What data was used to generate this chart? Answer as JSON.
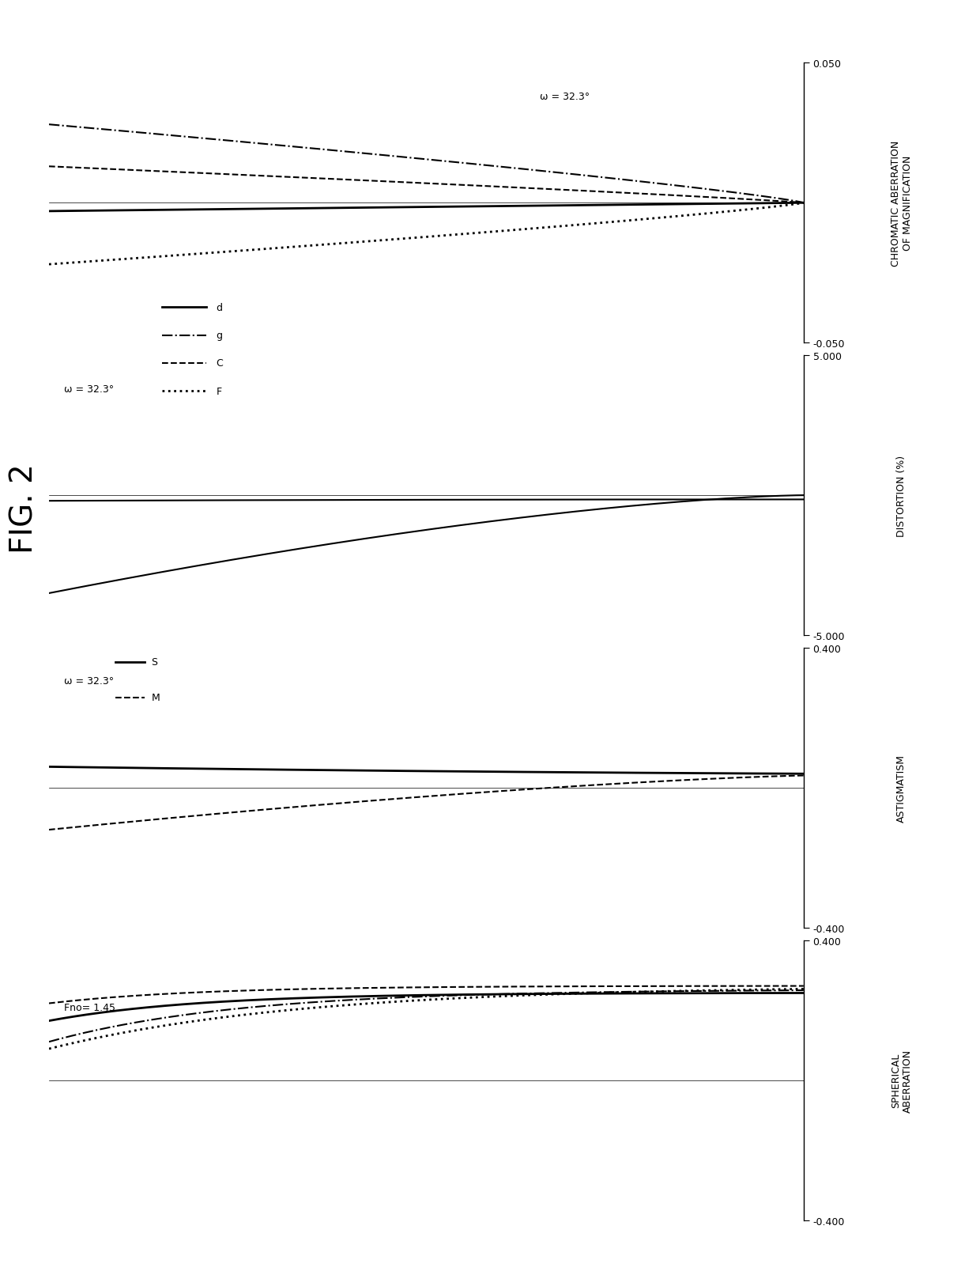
{
  "title": "FIG. 2",
  "bg": "#ffffff",
  "sph_ylim": [
    -0.4,
    0.4
  ],
  "sph_yticks": [
    -0.4,
    0.4
  ],
  "sph_ylabel1": "SPHERICAL",
  "sph_ylabel2": "ABERRATION",
  "sph_label": "Fno= 1.45",
  "ast_ylim": [
    -0.4,
    0.4
  ],
  "ast_yticks": [
    -0.4,
    0.4
  ],
  "ast_ylabel": "ASTIGMATISM",
  "ast_label": "ω = 32.3°",
  "dist_ylim": [
    -5.0,
    5.0
  ],
  "dist_yticks": [
    -5.0,
    5.0
  ],
  "dist_ylabel": "DISTORTION (%)",
  "dist_label": "ω = 32.3°",
  "chrom_ylim": [
    -0.05,
    0.05
  ],
  "chrom_yticks": [
    -0.05,
    0.05
  ],
  "chrom_ylabel1": "CHROMATIC ABERRATION",
  "chrom_ylabel2": "OF MAGNIFICATION",
  "chrom_label": "ω = 32.3°",
  "xlim": [
    0.0,
    1.0
  ]
}
